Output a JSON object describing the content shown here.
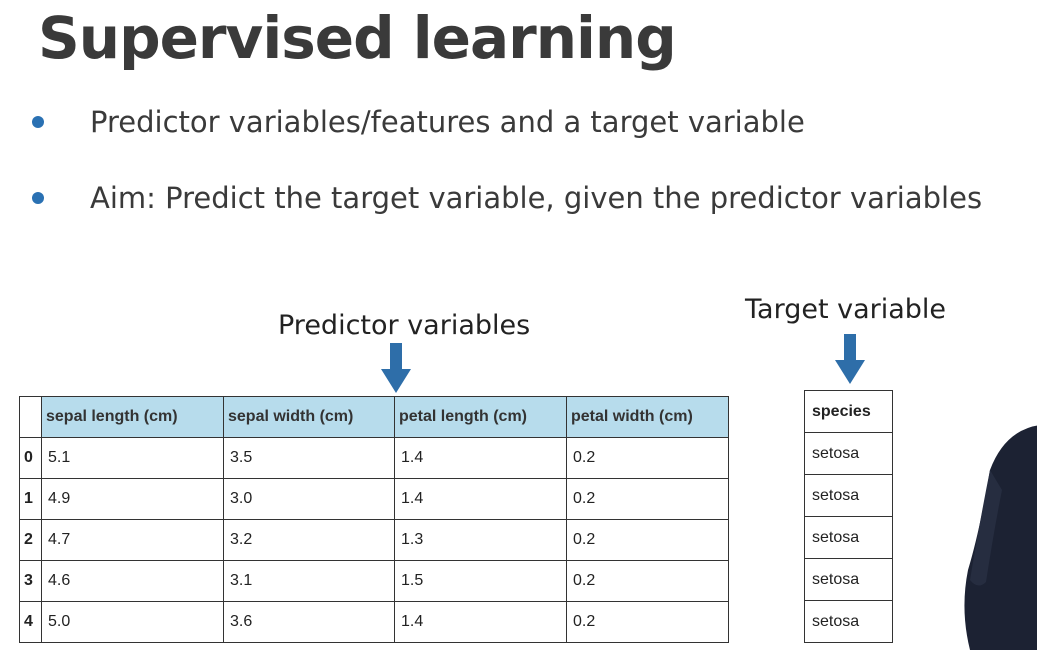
{
  "slide": {
    "title": "Supervised learning",
    "bullets": [
      "Predictor variables/features and a target variable",
      "Aim: Predict the target variable, given the predictor variables"
    ],
    "predictor_label": "Predictor variables",
    "target_label": "Target variable"
  },
  "predictor_table": {
    "columns": [
      "sepal length (cm)",
      "sepal width (cm)",
      "petal length (cm)",
      "petal width (cm)"
    ],
    "rows": [
      {
        "index": "0",
        "cells": [
          "5.1",
          "3.5",
          "1.4",
          "0.2"
        ]
      },
      {
        "index": "1",
        "cells": [
          "4.9",
          "3.0",
          "1.4",
          "0.2"
        ]
      },
      {
        "index": "2",
        "cells": [
          "4.7",
          "3.2",
          "1.3",
          "0.2"
        ]
      },
      {
        "index": "3",
        "cells": [
          "4.6",
          "3.1",
          "1.5",
          "0.2"
        ]
      },
      {
        "index": "4",
        "cells": [
          "5.0",
          "3.6",
          "1.4",
          "0.2"
        ]
      }
    ]
  },
  "target_table": {
    "column": "species",
    "rows": [
      "setosa",
      "setosa",
      "setosa",
      "setosa",
      "setosa"
    ]
  },
  "colors": {
    "bullet": "#2a71b3",
    "arrow": "#2e6ea9",
    "header_highlight": "#b7dcec"
  }
}
